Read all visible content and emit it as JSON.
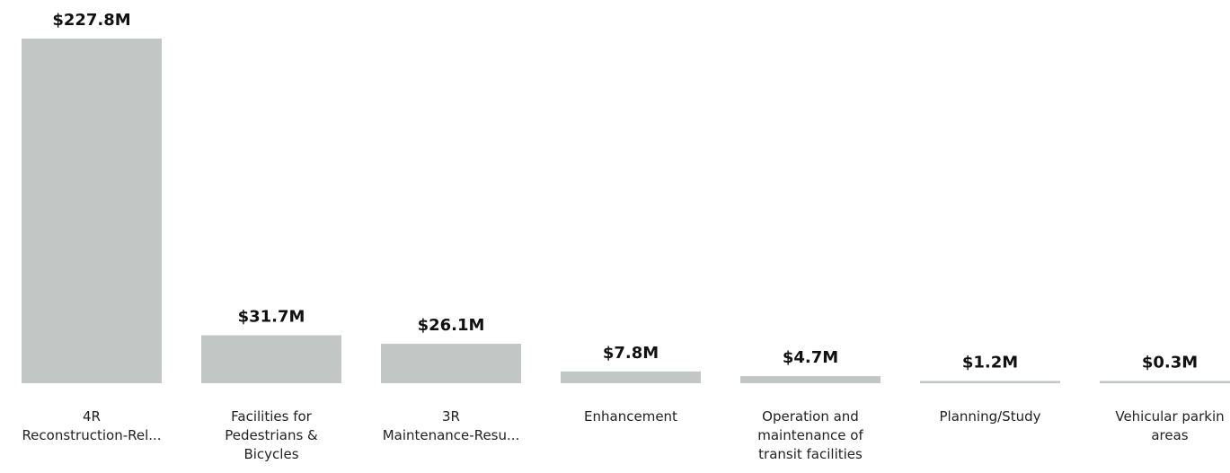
{
  "chart_data": {
    "type": "bar",
    "categories": [
      [
        "4R",
        "Reconstruction-Rel..."
      ],
      [
        "Facilities for",
        "Pedestrians &",
        "Bicycles"
      ],
      [
        "3R",
        "Maintenance-Resu..."
      ],
      [
        "Enhancement"
      ],
      [
        "Operation and",
        "maintenance of",
        "transit facilities"
      ],
      [
        "Planning/Study"
      ],
      [
        "Vehicular parkin",
        "areas"
      ]
    ],
    "values": [
      227.8,
      31.7,
      26.1,
      7.8,
      4.7,
      1.2,
      0.3
    ],
    "data_labels": [
      "$227.8M",
      "$31.7M",
      "$26.1M",
      "$7.8M",
      "$4.7M",
      "$1.2M",
      "$0.3M"
    ],
    "unit": "$M",
    "ylim": [
      0,
      227.8
    ],
    "grid": false,
    "axes_visible": false,
    "legend": "none",
    "bar_color": "#c2c6c5"
  }
}
